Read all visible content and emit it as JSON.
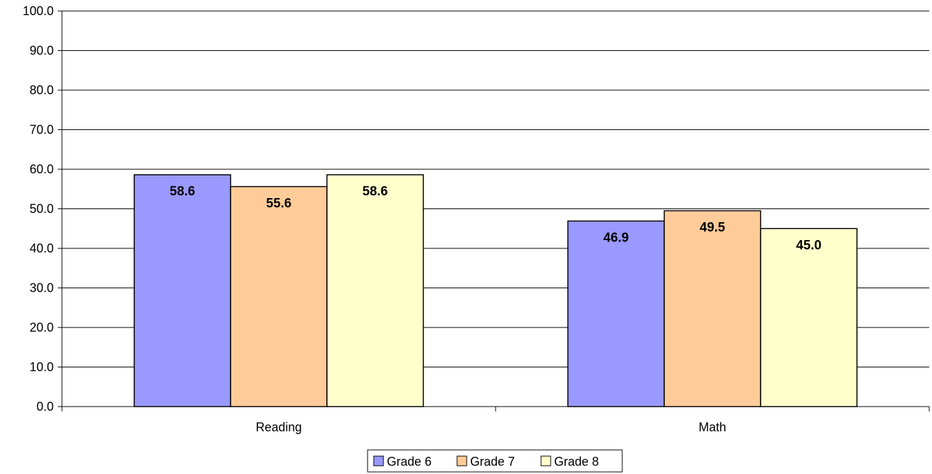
{
  "chart_data": {
    "type": "bar",
    "categories": [
      "Reading",
      "Math"
    ],
    "series": [
      {
        "name": "Grade 6",
        "values": [
          58.6,
          46.9
        ],
        "color": "#9999ff"
      },
      {
        "name": "Grade 7",
        "values": [
          55.6,
          49.5
        ],
        "color": "#ffcc99"
      },
      {
        "name": "Grade 8",
        "values": [
          58.6,
          45.0
        ],
        "color": "#ffffcc"
      }
    ],
    "yticks": [
      "0.0",
      "10.0",
      "20.0",
      "30.0",
      "40.0",
      "50.0",
      "60.0",
      "70.0",
      "80.0",
      "90.0",
      "100.0"
    ],
    "data_labels": [
      [
        "58.6",
        "46.9"
      ],
      [
        "55.6",
        "49.5"
      ],
      [
        "58.6",
        "45.0"
      ]
    ],
    "ylim": [
      0,
      100
    ],
    "grid": true,
    "legend_position": "bottom",
    "title": "",
    "xlabel": "",
    "ylabel": ""
  }
}
